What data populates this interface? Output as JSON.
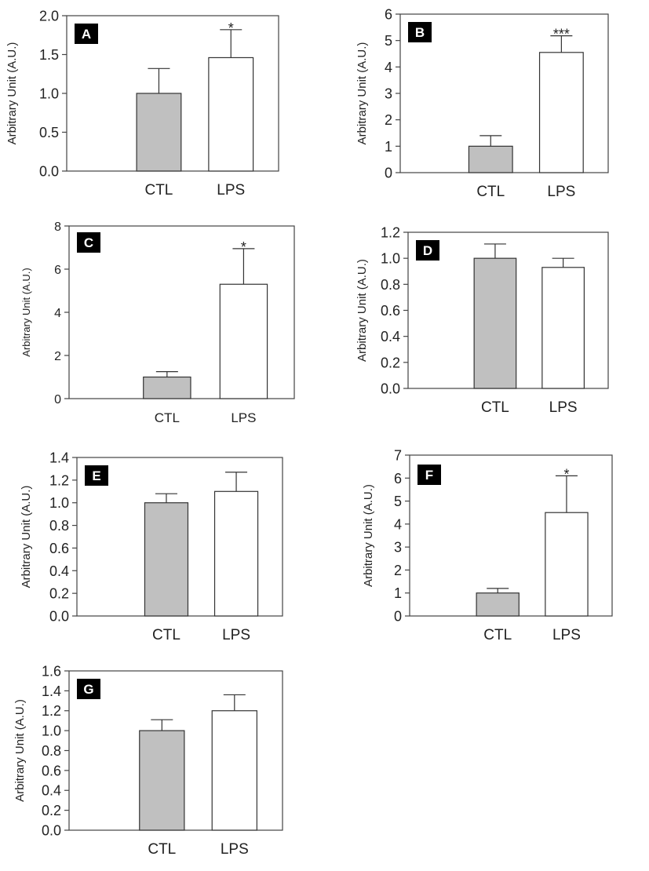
{
  "figure": {
    "categories": [
      "CTL",
      "LPS"
    ],
    "bar_colors": [
      "#c0c0c0",
      "#ffffff"
    ],
    "bar_stroke": "#333333"
  },
  "chart_data": [
    {
      "panel": "A",
      "type": "bar",
      "ylabel": "Arbitrary Unit (A.U.)",
      "categories": [
        "CTL",
        "LPS"
      ],
      "values": [
        1.0,
        1.46
      ],
      "errors": [
        0.32,
        0.36
      ],
      "significance": [
        "",
        "*"
      ],
      "ylim": [
        0,
        2.0
      ],
      "yticks": [
        0.0,
        0.5,
        1.0,
        1.5,
        2.0
      ],
      "ytick_labels": [
        "0.0",
        "0.5",
        "1.0",
        "1.5",
        "2.0"
      ]
    },
    {
      "panel": "B",
      "type": "bar",
      "ylabel": "Arbitrary Unit (A.U.)",
      "categories": [
        "CTL",
        "LPS"
      ],
      "values": [
        1.0,
        4.55
      ],
      "errors": [
        0.4,
        0.63
      ],
      "significance": [
        "",
        "***"
      ],
      "ylim": [
        0,
        6
      ],
      "yticks": [
        0,
        1,
        2,
        3,
        4,
        5,
        6
      ],
      "ytick_labels": [
        "0",
        "1",
        "2",
        "3",
        "4",
        "5",
        "6"
      ]
    },
    {
      "panel": "C",
      "type": "bar",
      "ylabel": "Arbitrary Unit (A.U.)",
      "categories": [
        "CTL",
        "LPS"
      ],
      "values": [
        1.0,
        5.3
      ],
      "errors": [
        0.25,
        1.65
      ],
      "significance": [
        "",
        "*"
      ],
      "ylim": [
        0,
        8
      ],
      "yticks": [
        0,
        2,
        4,
        6,
        8
      ],
      "ytick_labels": [
        "0",
        "2",
        "4",
        "6",
        "8"
      ]
    },
    {
      "panel": "D",
      "type": "bar",
      "ylabel": "Arbitrary Unit (A.U.)",
      "categories": [
        "CTL",
        "LPS"
      ],
      "values": [
        1.0,
        0.93
      ],
      "errors": [
        0.11,
        0.07
      ],
      "significance": [
        "",
        ""
      ],
      "ylim": [
        0,
        1.2
      ],
      "yticks": [
        0.0,
        0.2,
        0.4,
        0.6,
        0.8,
        1.0,
        1.2
      ],
      "ytick_labels": [
        "0.0",
        "0.2",
        "0.4",
        "0.6",
        "0.8",
        "1.0",
        "1.2"
      ]
    },
    {
      "panel": "E",
      "type": "bar",
      "ylabel": "Arbitrary Unit (A.U.)",
      "categories": [
        "CTL",
        "LPS"
      ],
      "values": [
        1.0,
        1.1
      ],
      "errors": [
        0.08,
        0.17
      ],
      "significance": [
        "",
        ""
      ],
      "ylim": [
        0,
        1.4
      ],
      "yticks": [
        0.0,
        0.2,
        0.4,
        0.6,
        0.8,
        1.0,
        1.2,
        1.4
      ],
      "ytick_labels": [
        "0.0",
        "0.2",
        "0.4",
        "0.6",
        "0.8",
        "1.0",
        "1.2",
        "1.4"
      ]
    },
    {
      "panel": "F",
      "type": "bar",
      "ylabel": "Arbitrary Unit (A.U.)",
      "categories": [
        "CTL",
        "LPS"
      ],
      "values": [
        1.0,
        4.5
      ],
      "errors": [
        0.2,
        1.6
      ],
      "significance": [
        "",
        "*"
      ],
      "ylim": [
        0,
        7
      ],
      "yticks": [
        0,
        1,
        2,
        3,
        4,
        5,
        6,
        7
      ],
      "ytick_labels": [
        "0",
        "1",
        "2",
        "3",
        "4",
        "5",
        "6",
        "7"
      ]
    },
    {
      "panel": "G",
      "type": "bar",
      "ylabel": "Arbitrary Unit (A.U.)",
      "categories": [
        "CTL",
        "LPS"
      ],
      "values": [
        1.0,
        1.2
      ],
      "errors": [
        0.11,
        0.16
      ],
      "significance": [
        "",
        ""
      ],
      "ylim": [
        0,
        1.6
      ],
      "yticks": [
        0.0,
        0.2,
        0.4,
        0.6,
        0.8,
        1.0,
        1.2,
        1.4,
        1.6
      ],
      "ytick_labels": [
        "0.0",
        "0.2",
        "0.4",
        "0.6",
        "0.8",
        "1.0",
        "1.2",
        "1.4",
        "1.6"
      ]
    }
  ]
}
